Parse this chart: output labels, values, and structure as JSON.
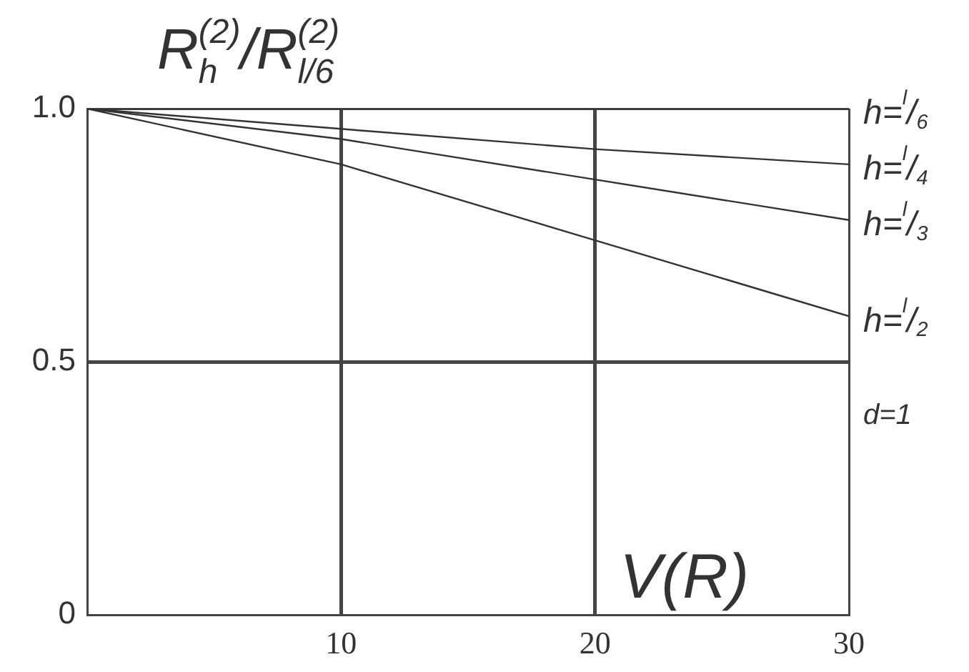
{
  "chart_data": {
    "type": "line",
    "ylabel": "R$^{(2)}$$_{h}$/R$^{(2)}$$_{l/6}$",
    "xlabel": "V(R)",
    "annotations": [
      "d=1"
    ],
    "xlim": [
      0,
      30
    ],
    "xticks": [
      {
        "value": 0,
        "label": null
      },
      10,
      20,
      30
    ],
    "ylim": [
      0,
      1
    ],
    "yticks": [
      0,
      {
        "value": 0.5,
        "label": "0.5"
      },
      {
        "value": 1,
        "label": "1.0"
      }
    ],
    "grid": true,
    "legend": false,
    "marker": "none",
    "line_style": "solid",
    "series": [
      {
        "name": "h=$^{l}$/$_{6}$",
        "color": "#333333",
        "x": [
          0,
          30
        ],
        "values": [
          1.0,
          1.0
        ]
      },
      {
        "name": "h=$^{l}$/$_{4}$",
        "color": "#333333",
        "x": [
          0,
          10,
          20,
          30
        ],
        "values": [
          1.0,
          0.96,
          0.92,
          0.89
        ]
      },
      {
        "name": "h=$^{l}$/$_{3}$",
        "color": "#333333",
        "x": [
          0,
          10,
          20,
          30
        ],
        "values": [
          1.0,
          0.94,
          0.86,
          0.78
        ]
      },
      {
        "name": "h=$^{l}$/$_{2}$",
        "color": "#333333",
        "x": [
          0,
          10,
          20,
          30
        ],
        "values": [
          1.0,
          0.89,
          0.74,
          0.59
        ]
      }
    ]
  }
}
